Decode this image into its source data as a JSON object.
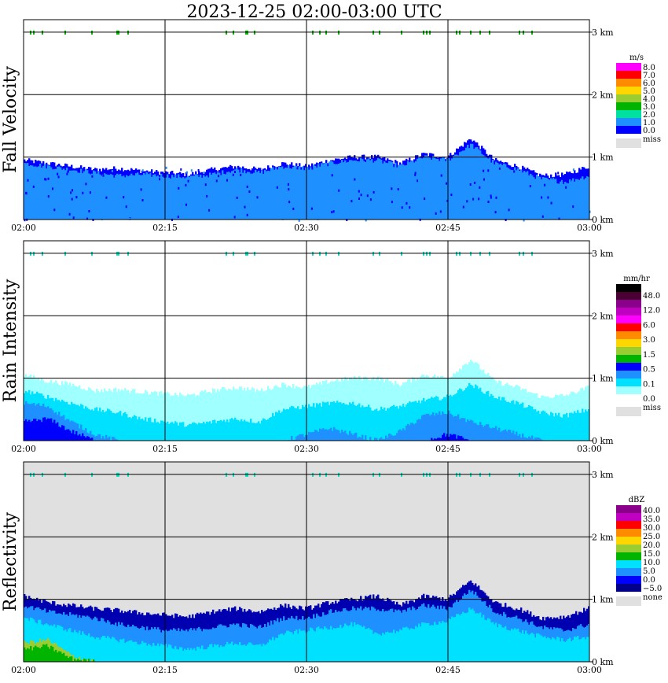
{
  "title": "2023-12-25   02:00-03:00 UTC",
  "time_ticks": [
    "02:00",
    "02:15",
    "02:30",
    "02:45",
    "03:00"
  ],
  "height_ticks": [
    "0 km",
    "1 km",
    "2 km",
    "3 km"
  ],
  "colors": {
    "miss": "#e0e0e0",
    "grid": "#000000"
  },
  "chart_data": [
    {
      "type": "heatmap",
      "title": "Fall Velocity",
      "ylabel": "Fall Velocity",
      "xlabel": "",
      "xlim": [
        "02:00",
        "03:00"
      ],
      "ylim": [
        0,
        3.2
      ],
      "y_unit": "km",
      "grid": true,
      "background": "white",
      "legend": {
        "unit": "m/s",
        "labels": [
          "8.0",
          "7.0",
          "6.0",
          "5.0",
          "4.0",
          "3.0",
          "2.0",
          "1.0",
          "0.0"
        ],
        "colors": [
          "#ff00ff",
          "#ff0000",
          "#ff8c00",
          "#ffd700",
          "#9acd32",
          "#00b400",
          "#00e0a0",
          "#1e90ff",
          "#0000ff"
        ],
        "miss_label": "miss"
      },
      "layers": [
        {
          "value": "0.0-1.0",
          "color": "#0000ff",
          "top_km": [
            0.95,
            0.9,
            0.85,
            0.8,
            0.82,
            0.78,
            0.75,
            0.72,
            0.8,
            0.85,
            0.8,
            0.9,
            0.85,
            0.95,
            1.0,
            1.0,
            0.9,
            1.05,
            1.0,
            1.3,
            0.95,
            0.85,
            0.7,
            0.72,
            0.85
          ]
        },
        {
          "value": "1.0-2.0",
          "color": "#1e90ff",
          "top_km": [
            0.9,
            0.85,
            0.8,
            0.75,
            0.7,
            0.72,
            0.7,
            0.68,
            0.72,
            0.8,
            0.75,
            0.85,
            0.82,
            0.9,
            0.95,
            0.95,
            0.85,
            1.0,
            0.95,
            1.2,
            0.9,
            0.8,
            0.65,
            0.6,
            0.7
          ]
        }
      ],
      "cloud_top_echo": {
        "height_km": 3.0,
        "color": "#00b400"
      }
    },
    {
      "type": "heatmap",
      "title": "Rain Intensity",
      "ylabel": "Rain Intensity",
      "xlabel": "",
      "xlim": [
        "02:00",
        "03:00"
      ],
      "ylim": [
        0,
        3.2
      ],
      "y_unit": "km",
      "grid": true,
      "background": "white",
      "legend": {
        "unit": "mm/hr",
        "labels": [
          "48.0",
          "12.0",
          "6.0",
          "3.0",
          "1.5",
          "0.5",
          "0.1",
          "0.0"
        ],
        "colors": [
          "#000000",
          "#4b0033",
          "#8b008b",
          "#c000c0",
          "#ff00ff",
          "#ff0000",
          "#ff8c00",
          "#ffd700",
          "#9acd32",
          "#00b400",
          "#0000ff",
          "#1e90ff",
          "#00e0ff",
          "#a0ffff",
          "#ffffff"
        ],
        "miss_label": "miss"
      },
      "layers": [
        {
          "value": "0.0-0.1",
          "color": "#a0ffff",
          "top_km": [
            1.05,
            0.95,
            0.9,
            0.8,
            0.82,
            0.78,
            0.75,
            0.72,
            0.8,
            0.85,
            0.8,
            0.9,
            0.85,
            0.95,
            1.0,
            1.0,
            0.9,
            1.05,
            1.0,
            1.3,
            0.95,
            0.85,
            0.7,
            0.72,
            0.85
          ]
        },
        {
          "value": "0.1-0.5",
          "color": "#00e0ff",
          "top_km": [
            0.8,
            0.7,
            0.6,
            0.5,
            0.45,
            0.35,
            0.3,
            0.25,
            0.3,
            0.35,
            0.3,
            0.5,
            0.55,
            0.6,
            0.6,
            0.5,
            0.55,
            0.65,
            0.7,
            0.9,
            0.7,
            0.6,
            0.45,
            0.4,
            0.5
          ]
        },
        {
          "value": "0.5-1.0",
          "color": "#1e90ff",
          "top_km": [
            0.6,
            0.55,
            0.3,
            0.1,
            0.0,
            0.0,
            0.0,
            0.0,
            0.0,
            0.0,
            0.0,
            0.0,
            0.1,
            0.2,
            0.1,
            0.0,
            0.15,
            0.4,
            0.45,
            0.3,
            0.2,
            0.1,
            0.0,
            0.0,
            0.0
          ]
        },
        {
          "value": "1.0-1.5",
          "color": "#0000ff",
          "top_km": [
            0.3,
            0.35,
            0.15,
            0.0,
            0.0,
            0.0,
            0.0,
            0.0,
            0.0,
            0.0,
            0.0,
            0.0,
            0.0,
            0.0,
            0.0,
            0.0,
            0.0,
            0.0,
            0.1,
            0.0,
            0.0,
            0.0,
            0.0,
            0.0,
            0.0
          ]
        }
      ],
      "cloud_top_echo": {
        "height_km": 3.0,
        "color": "#00e0c0"
      }
    },
    {
      "type": "heatmap",
      "title": "Reflectivity",
      "ylabel": "Reflectivity",
      "xlabel": "",
      "xlim": [
        "02:00",
        "03:00"
      ],
      "ylim": [
        0,
        3.2
      ],
      "y_unit": "km",
      "grid": true,
      "background": "#e0e0e0",
      "legend": {
        "unit": "dBZ",
        "labels": [
          "40.0",
          "35.0",
          "30.0",
          "25.0",
          "20.0",
          "15.0",
          "10.0",
          "5.0",
          "0.0",
          "−5.0"
        ],
        "colors": [
          "#8b008b",
          "#c000c0",
          "#ff0000",
          "#ff8c00",
          "#ffd700",
          "#9acd32",
          "#00b400",
          "#00e0ff",
          "#1e90ff",
          "#0000ff",
          "#00008b"
        ],
        "miss_label": "none"
      },
      "layers": [
        {
          "value": "-5.0-0.0",
          "color": "#0000b0",
          "top_km": [
            1.05,
            0.95,
            0.9,
            0.85,
            0.82,
            0.78,
            0.75,
            0.72,
            0.8,
            0.85,
            0.8,
            0.9,
            0.85,
            0.95,
            1.0,
            1.05,
            0.9,
            1.05,
            1.0,
            1.3,
            0.95,
            0.85,
            0.7,
            0.72,
            0.85
          ]
        },
        {
          "value": "0.0-5.0",
          "color": "#1e90ff",
          "top_km": [
            0.9,
            0.8,
            0.75,
            0.7,
            0.6,
            0.55,
            0.5,
            0.5,
            0.55,
            0.6,
            0.55,
            0.7,
            0.7,
            0.8,
            0.85,
            0.85,
            0.8,
            0.9,
            0.85,
            1.15,
            0.8,
            0.7,
            0.55,
            0.5,
            0.6
          ]
        },
        {
          "value": "5.0-10.0",
          "color": "#00e0ff",
          "top_km": [
            0.7,
            0.6,
            0.5,
            0.4,
            0.35,
            0.3,
            0.25,
            0.2,
            0.25,
            0.3,
            0.25,
            0.45,
            0.5,
            0.55,
            0.6,
            0.45,
            0.5,
            0.6,
            0.65,
            0.85,
            0.6,
            0.5,
            0.4,
            0.35,
            0.4
          ]
        },
        {
          "value": "10.0-15.0",
          "color": "#9acd32",
          "top_km": [
            0.3,
            0.35,
            0.1,
            0.0,
            0.0,
            0.0,
            0.0,
            0.0,
            0.0,
            0.0,
            0.0,
            0.0,
            0.0,
            0.0,
            0.0,
            0.0,
            0.0,
            0.0,
            0.0,
            0.0,
            0.0,
            0.0,
            0.0,
            0.0,
            0.0
          ]
        },
        {
          "value": "15.0-20.0",
          "color": "#00b400",
          "top_km": [
            0.2,
            0.25,
            0.05,
            0.0,
            0.0,
            0.0,
            0.0,
            0.0,
            0.0,
            0.0,
            0.0,
            0.0,
            0.0,
            0.0,
            0.0,
            0.0,
            0.0,
            0.0,
            0.0,
            0.0,
            0.0,
            0.0,
            0.0,
            0.0,
            0.0
          ]
        }
      ],
      "cloud_top_echo": {
        "height_km": 3.0,
        "color": "#00e0c0"
      }
    }
  ]
}
